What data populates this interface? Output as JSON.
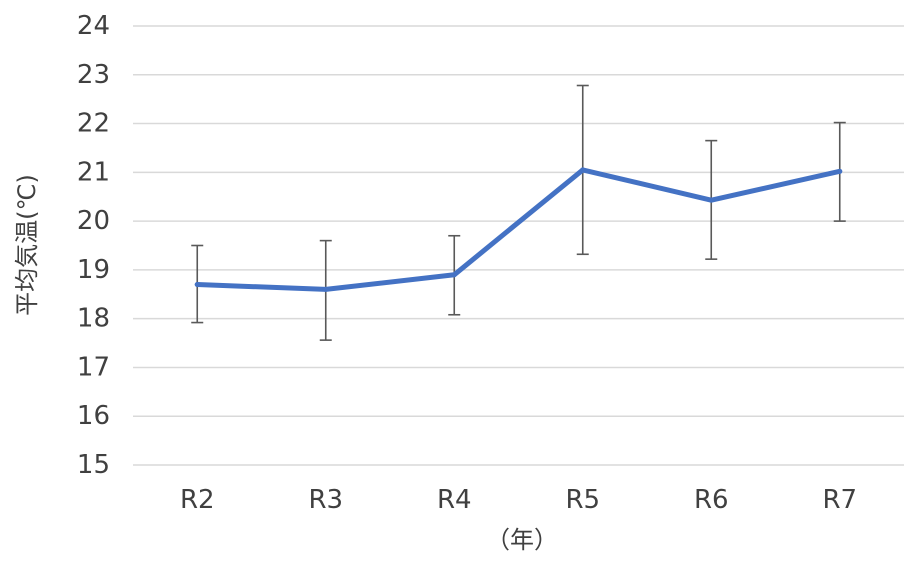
{
  "chart_data": {
    "type": "line",
    "title": "",
    "xlabel": "（年）",
    "ylabel": "平均気温(℃)",
    "categories": [
      "R2",
      "R3",
      "R4",
      "R5",
      "R6",
      "R7"
    ],
    "series": [
      {
        "values": [
          18.7,
          18.6,
          18.9,
          21.05,
          20.43,
          21.02
        ],
        "error_upper": [
          19.5,
          19.6,
          19.7,
          22.78,
          21.65,
          22.02
        ],
        "error_lower": [
          17.92,
          17.56,
          18.08,
          19.32,
          19.22,
          20.0
        ],
        "color": "#4472C4"
      }
    ],
    "ylim": [
      15,
      24
    ],
    "yticks": [
      15,
      16,
      17,
      18,
      19,
      20,
      21,
      22,
      23,
      24
    ],
    "grid": true,
    "legend": "none",
    "colors": {
      "line": "#4472C4",
      "error_bar": "#595959",
      "grid": "#D9D9D9",
      "text": "#404040"
    }
  }
}
